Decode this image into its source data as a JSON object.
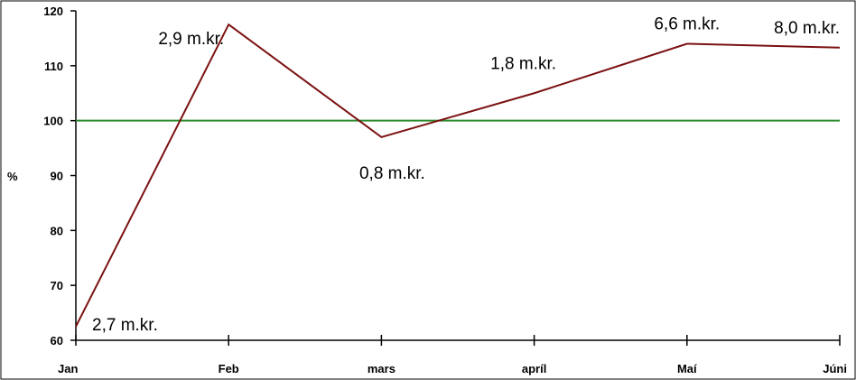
{
  "chart_data": {
    "type": "line",
    "categories": [
      "Jan",
      "Feb",
      "mars",
      "apríl",
      "Maí",
      "Júni"
    ],
    "ylabel": "%",
    "ylim": [
      60,
      120
    ],
    "yticks": [
      60,
      70,
      80,
      90,
      100,
      110,
      120
    ],
    "grid": false,
    "series": [
      {
        "values": [
          62.5,
          117.5,
          97,
          105,
          114,
          113.3
        ],
        "labels": [
          "2,7 m.kr.",
          "2,9 m.kr.",
          "0,8 m.kr.",
          "1,8 m.kr.",
          "6,6 m.kr.",
          "8,0 m.kr."
        ],
        "color": "#7b1111"
      }
    ],
    "reference_line": {
      "value": 100,
      "color": "#2e8b2e"
    }
  }
}
